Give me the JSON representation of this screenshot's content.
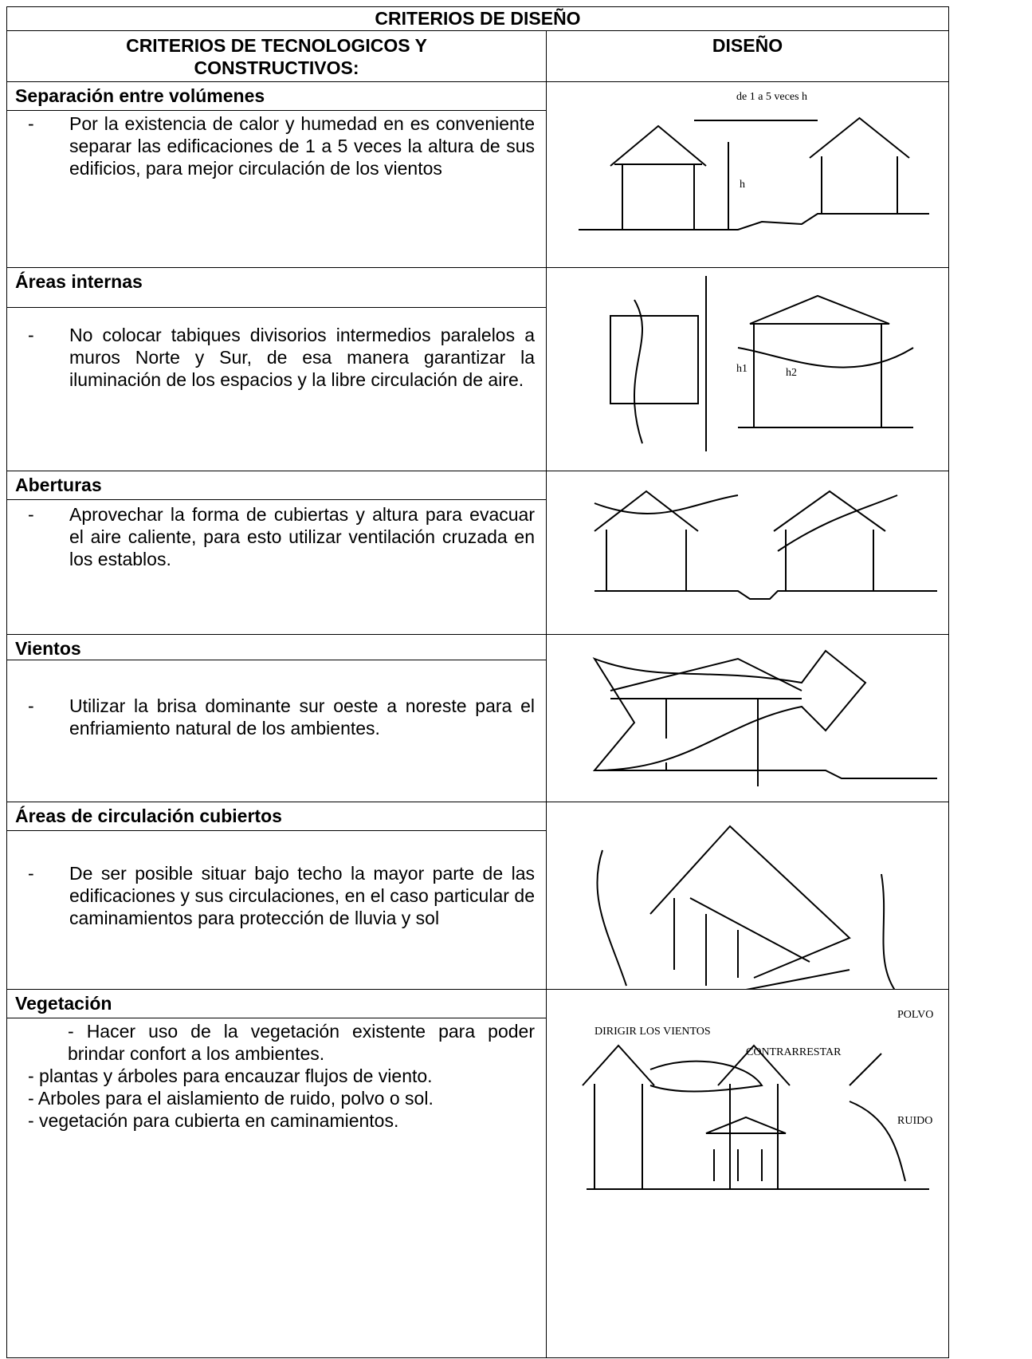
{
  "table": {
    "title": "CRITERIOS DE DISEÑO",
    "headers": [
      "CRITERIOS DE TECNOLOGICOS Y CONSTRUCTIVOS:",
      "DISEÑO"
    ],
    "rows": [
      {
        "heading": "Separación entre volúmenes",
        "bullet": "-",
        "text": "Por la existencia de calor y humedad en es conveniente separar las edificaciones de 1 a 5 veces la altura de sus edificios, para mejor circulación de los vientos",
        "sketch_labels": [
          "de 1 a 5 veces h",
          "h"
        ]
      },
      {
        "heading": "Áreas internas",
        "bullet": "-",
        "text": "No colocar tabiques divisorios intermedios paralelos a muros Norte y Sur, de esa manera garantizar la iluminación de los espacios y la libre circulación de aire.",
        "sketch_labels": [
          "h1",
          "h2"
        ]
      },
      {
        "heading": "Aberturas",
        "bullet": "-",
        "text": "Aprovechar la forma de cubiertas y altura para evacuar el aire caliente, para esto utilizar ventilación cruzada en  los establos."
      },
      {
        "heading": "Vientos",
        "bullet": "-",
        "text": "Utilizar la brisa dominante sur oeste a noreste para el enfriamiento natural de los ambientes."
      },
      {
        "heading": "Áreas de circulación cubiertos",
        "bullet": "-",
        "text": "De ser posible situar bajo techo la mayor parte de las edificaciones y sus circulaciones, en el caso particular de caminamientos para protección de lluvia y sol"
      },
      {
        "heading": "Vegetación",
        "paragraphs": [
          "- Hacer uso de la vegetación existente para poder brindar confort a los ambientes.",
          "-  plantas y árboles para encauzar flujos de viento.",
          "- Arboles para el aislamiento de ruido, polvo o sol.",
          "- vegetación para cubierta en caminamientos."
        ],
        "sketch_labels": [
          "DIRIGIR LOS VIENTOS",
          "CONTRARRESTAR",
          "POLVO",
          "RUIDO"
        ]
      }
    ]
  }
}
